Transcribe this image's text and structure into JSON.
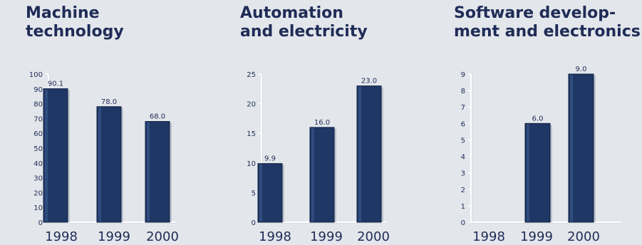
{
  "chart_data": [
    {
      "type": "bar",
      "title": "Machine\ntechnology",
      "categories": [
        "1998",
        "1999",
        "2000"
      ],
      "values": [
        90.1,
        78.0,
        68.0
      ],
      "value_labels": [
        "90.1",
        "78.0",
        "68.0"
      ],
      "yticks": [
        0,
        10,
        20,
        30,
        40,
        50,
        60,
        70,
        80,
        90,
        100
      ],
      "ylim": [
        0,
        100
      ],
      "xlabel": "",
      "ylabel": "",
      "grid": false
    },
    {
      "type": "bar",
      "title": "Automation\nand electricity",
      "categories": [
        "1998",
        "1999",
        "2000"
      ],
      "values": [
        9.9,
        16.0,
        23.0
      ],
      "value_labels": [
        "9.9",
        "16.0",
        "23.0"
      ],
      "yticks": [
        0,
        5,
        10,
        15,
        20,
        25
      ],
      "ylim": [
        0,
        25
      ],
      "xlabel": "",
      "ylabel": "",
      "grid": false
    },
    {
      "type": "bar",
      "title": "Software develop-\nment and electronics",
      "categories": [
        "1998",
        "1999",
        "2000"
      ],
      "values": [
        null,
        6.0,
        9.0
      ],
      "value_labels": [
        "",
        "6.0",
        "9.0"
      ],
      "yticks": [
        0,
        1,
        2,
        3,
        4,
        5,
        6,
        7,
        8,
        9
      ],
      "ylim": [
        0,
        9
      ],
      "xlabel": "",
      "ylabel": "",
      "grid": false
    }
  ],
  "colors": {
    "background": "#e3e6eb",
    "bar": "#1e3764",
    "bar_edge": "#0f1f3f",
    "bar_highlight": "#3c5a8f",
    "axis": "#ffffff",
    "axis_shadow": "#c8ccd4",
    "text": "#1f2c57"
  }
}
